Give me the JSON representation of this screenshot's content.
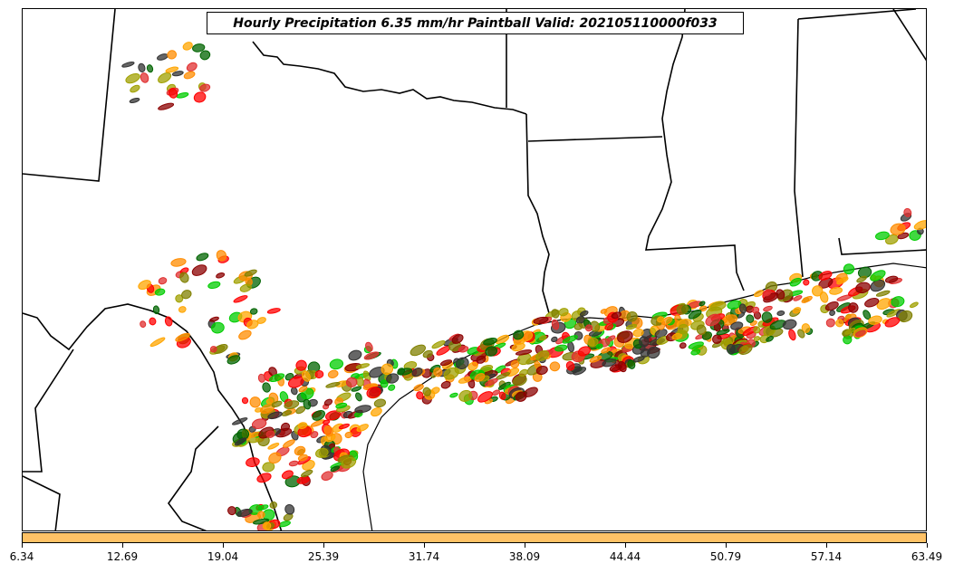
{
  "map": {
    "title": "Hourly Precipitation 6.35 mm/hr Paintball Valid: 202105110000f033",
    "colorbar": {
      "fill_color": "#ffc266",
      "ticks": [
        "6.34",
        "12.69",
        "19.04",
        "25.39",
        "31.74",
        "38.09",
        "44.44",
        "50.79",
        "57.14",
        "63.49"
      ]
    },
    "member_colors": [
      "#ff0000",
      "#ff8c00",
      "#00cc00",
      "#8b0000",
      "#808000",
      "#333333",
      "#e03030",
      "#a0a000",
      "#006400",
      "#ffa500"
    ]
  }
}
